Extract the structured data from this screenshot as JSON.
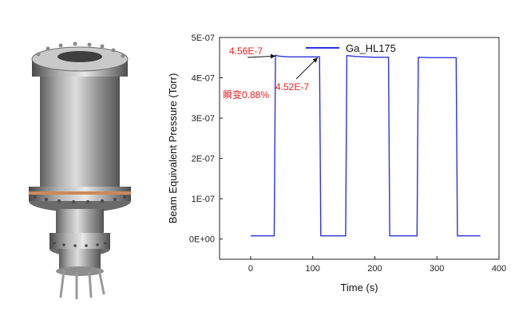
{
  "chart_data": {
    "type": "line",
    "xlabel": "Time (s)",
    "ylabel": "Beam Equivalent Pressure (Torr)",
    "xlim": [
      -50,
      400
    ],
    "ylim": [
      -5e-08,
      5e-07
    ],
    "x_ticks": [
      "0",
      "100",
      "200",
      "300",
      "400"
    ],
    "y_ticks": [
      "0E+00",
      "1E-07",
      "2E-07",
      "3E-07",
      "4E-07",
      "5E-07"
    ],
    "legend_position": "top-right",
    "series": [
      {
        "name": "Ga_HL175",
        "color": "#2b35d8",
        "x": [
          0,
          38,
          40,
          45,
          60,
          80,
          100,
          111,
          113,
          120,
          150,
          153,
          155,
          170,
          200,
          222,
          224,
          240,
          266,
          268,
          270,
          290,
          320,
          331,
          333,
          350,
          370
        ],
        "y": [
          8e-09,
          8e-09,
          4.56e-07,
          4.54e-07,
          4.52e-07,
          4.52e-07,
          4.52e-07,
          4.52e-07,
          8e-09,
          8e-09,
          8e-09,
          8e-09,
          4.55e-07,
          4.53e-07,
          4.51e-07,
          4.51e-07,
          8e-09,
          8e-09,
          8e-09,
          8e-09,
          4.51e-07,
          4.5e-07,
          4.5e-07,
          4.5e-07,
          8e-09,
          8e-09,
          8e-09
        ]
      }
    ],
    "annotations": [
      {
        "text": "4.56E-7",
        "x": 40,
        "y": 4.56e-07
      },
      {
        "text": "4.52E-7",
        "x": 108,
        "y": 4.52e-07
      },
      {
        "text": "瞬变0.88%"
      }
    ]
  }
}
